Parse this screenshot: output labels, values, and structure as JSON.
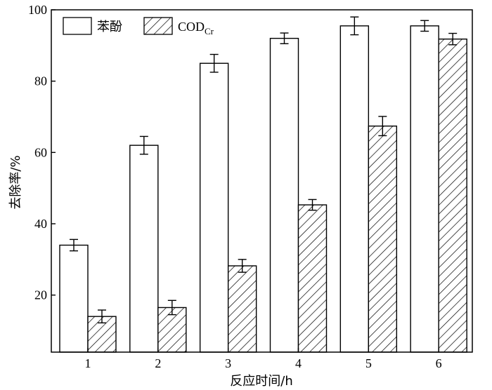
{
  "chart_data": {
    "type": "bar",
    "categories": [
      "1",
      "2",
      "3",
      "4",
      "5",
      "6"
    ],
    "series": [
      {
        "name": "苯酚",
        "values": [
          34.0,
          62.0,
          85.0,
          92.0,
          95.5,
          95.5
        ],
        "errors": [
          1.6,
          2.5,
          2.5,
          1.5,
          2.5,
          1.5
        ],
        "fill": "#ffffff",
        "pattern": "none"
      },
      {
        "name": "COD",
        "name_subscript": "Cr",
        "values": [
          14.0,
          16.5,
          28.2,
          45.3,
          67.4,
          91.8
        ],
        "errors": [
          1.8,
          2.0,
          1.8,
          1.5,
          2.7,
          1.6
        ],
        "fill": "#ffffff",
        "pattern": "diagonal-hatch"
      }
    ],
    "xlabel": "反应时间/h",
    "ylabel": "去除率/%",
    "ylim": [
      4,
      100
    ],
    "yticks": [
      20,
      40,
      60,
      80,
      100
    ],
    "grid": false,
    "legend_position": "top-left",
    "colors": {
      "stroke": "#000000",
      "background": "#ffffff"
    }
  }
}
